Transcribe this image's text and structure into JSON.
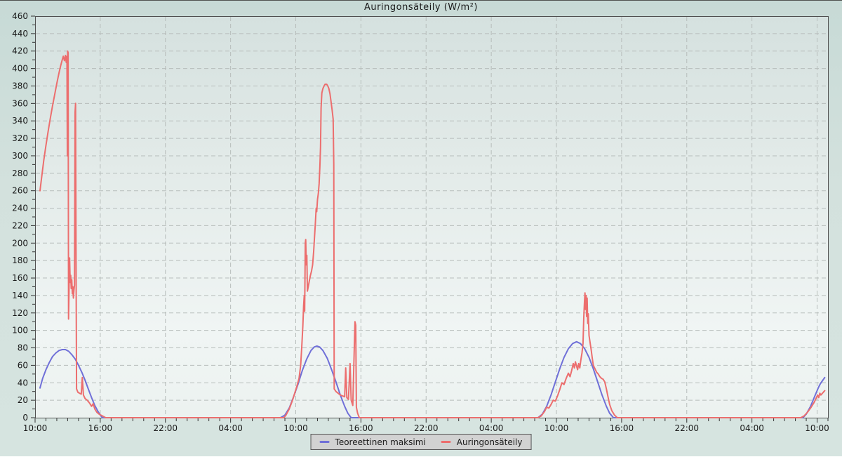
{
  "colors": {
    "background_top": "#c7dad6",
    "background_bottom": "#d6e4e0",
    "plot_top": "#d5e1df",
    "plot_bottom": "#ecf2f0",
    "grid": "#b7bdbb",
    "axis_border": "#4f4f4f",
    "tick": "#333333",
    "text": "#1a1a1a",
    "legend_bg": "#d2d2d2",
    "blue_series": "#7070d8",
    "red_series": "#ec6e6e"
  },
  "chart_data": {
    "type": "line",
    "title": "Auringonsäteily (W/m²)",
    "ylabel": "",
    "xlabel": "",
    "grid": {
      "horizontal": "dashed",
      "vertical": "dashed"
    },
    "x_axis": {
      "unit": "time-of-day over 3 days",
      "range_hours": [
        0,
        73
      ],
      "tick_hours": [
        0,
        6,
        12,
        18,
        24,
        30,
        36,
        42,
        48,
        54,
        60,
        66,
        72
      ],
      "tick_labels": [
        "10:00",
        "16:00",
        "22:00",
        "04:00",
        "10:00",
        "16:00",
        "22:00",
        "04:00",
        "10:00",
        "16:00",
        "22:00",
        "04:00",
        "10:00"
      ],
      "minor_tick_every_hours": 1
    },
    "y_axis": {
      "min": 0,
      "max": 460,
      "tick_step": 20,
      "minor_step": 10,
      "tick_labels": [
        "0",
        "20",
        "40",
        "60",
        "80",
        "100",
        "120",
        "140",
        "160",
        "180",
        "200",
        "220",
        "240",
        "260",
        "280",
        "300",
        "320",
        "340",
        "360",
        "380",
        "400",
        "420",
        "440",
        "460"
      ]
    },
    "legend": {
      "position": "bottom-center"
    },
    "series": [
      {
        "id": "teoreettinen-maksimi",
        "name": "Teoreettinen maksimi",
        "color": "#7070d8",
        "points": [
          [
            0.45,
            34
          ],
          [
            0.7,
            45
          ],
          [
            1.0,
            55
          ],
          [
            1.3,
            63
          ],
          [
            1.6,
            70
          ],
          [
            1.9,
            74
          ],
          [
            2.2,
            77
          ],
          [
            2.5,
            78
          ],
          [
            2.8,
            78
          ],
          [
            3.1,
            76
          ],
          [
            3.4,
            72
          ],
          [
            3.7,
            67
          ],
          [
            4.0,
            60
          ],
          [
            4.3,
            52
          ],
          [
            4.6,
            43
          ],
          [
            4.9,
            33
          ],
          [
            5.2,
            23
          ],
          [
            5.5,
            14
          ],
          [
            5.8,
            7
          ],
          [
            6.0,
            3
          ],
          [
            6.2,
            0
          ],
          [
            10,
            0
          ],
          [
            14,
            0
          ],
          [
            18,
            0
          ],
          [
            22.6,
            0
          ],
          [
            23.0,
            3
          ],
          [
            23.4,
            11
          ],
          [
            23.8,
            24
          ],
          [
            24.2,
            38
          ],
          [
            24.6,
            54
          ],
          [
            25.0,
            67
          ],
          [
            25.4,
            77
          ],
          [
            25.7,
            81
          ],
          [
            25.95,
            82
          ],
          [
            26.2,
            81
          ],
          [
            26.5,
            77
          ],
          [
            26.9,
            68
          ],
          [
            27.3,
            55
          ],
          [
            27.7,
            41
          ],
          [
            28.1,
            26
          ],
          [
            28.5,
            13
          ],
          [
            28.8,
            5
          ],
          [
            29.1,
            0
          ],
          [
            33,
            0
          ],
          [
            38,
            0
          ],
          [
            43,
            0
          ],
          [
            46.3,
            0
          ],
          [
            46.7,
            4
          ],
          [
            47.1,
            13
          ],
          [
            47.5,
            26
          ],
          [
            47.9,
            41
          ],
          [
            48.3,
            56
          ],
          [
            48.7,
            69
          ],
          [
            49.1,
            79
          ],
          [
            49.5,
            85
          ],
          [
            49.85,
            87
          ],
          [
            50.2,
            85
          ],
          [
            50.6,
            79
          ],
          [
            51.0,
            69
          ],
          [
            51.4,
            56
          ],
          [
            51.8,
            41
          ],
          [
            52.2,
            26
          ],
          [
            52.6,
            13
          ],
          [
            52.9,
            5
          ],
          [
            53.25,
            0
          ],
          [
            57,
            0
          ],
          [
            62,
            0
          ],
          [
            66,
            0
          ],
          [
            70.7,
            0
          ],
          [
            71.0,
            4
          ],
          [
            71.4,
            13
          ],
          [
            71.8,
            25
          ],
          [
            72.1,
            34
          ],
          [
            72.3,
            39
          ],
          [
            72.7,
            46
          ]
        ]
      },
      {
        "id": "auringonsateily",
        "name": "Auringonsäteily",
        "color": "#ec6e6e",
        "points": [
          [
            0.45,
            260
          ],
          [
            0.6,
            275
          ],
          [
            0.8,
            295
          ],
          [
            1.0,
            312
          ],
          [
            1.2,
            328
          ],
          [
            1.4,
            343
          ],
          [
            1.6,
            357
          ],
          [
            1.8,
            370
          ],
          [
            2.0,
            383
          ],
          [
            2.2,
            395
          ],
          [
            2.35,
            403
          ],
          [
            2.5,
            410
          ],
          [
            2.6,
            414
          ],
          [
            2.7,
            409
          ],
          [
            2.8,
            415
          ],
          [
            2.87,
            407
          ],
          [
            2.93,
            414
          ],
          [
            2.97,
            300
          ],
          [
            3.0,
            420
          ],
          [
            3.04,
            418
          ],
          [
            3.08,
            113
          ],
          [
            3.13,
            152
          ],
          [
            3.18,
            183
          ],
          [
            3.23,
            155
          ],
          [
            3.28,
            163
          ],
          [
            3.33,
            148
          ],
          [
            3.38,
            158
          ],
          [
            3.43,
            142
          ],
          [
            3.48,
            150
          ],
          [
            3.53,
            137
          ],
          [
            3.58,
            146
          ],
          [
            3.63,
            152
          ],
          [
            3.68,
            350
          ],
          [
            3.73,
            360
          ],
          [
            3.78,
            160
          ],
          [
            3.82,
            33
          ],
          [
            3.95,
            29
          ],
          [
            4.1,
            28
          ],
          [
            4.25,
            27
          ],
          [
            4.35,
            46
          ],
          [
            4.45,
            26
          ],
          [
            4.6,
            22
          ],
          [
            4.8,
            20
          ],
          [
            5.0,
            17
          ],
          [
            5.2,
            13
          ],
          [
            5.35,
            16
          ],
          [
            5.5,
            10
          ],
          [
            5.7,
            6
          ],
          [
            5.9,
            4
          ],
          [
            6.2,
            2
          ],
          [
            6.5,
            0
          ],
          [
            10,
            0
          ],
          [
            14,
            0
          ],
          [
            18,
            0
          ],
          [
            22.9,
            0
          ],
          [
            23.1,
            3
          ],
          [
            23.4,
            10
          ],
          [
            23.7,
            20
          ],
          [
            23.9,
            28
          ],
          [
            24.1,
            36
          ],
          [
            24.3,
            45
          ],
          [
            24.45,
            60
          ],
          [
            24.55,
            80
          ],
          [
            24.65,
            105
          ],
          [
            24.72,
            128
          ],
          [
            24.78,
            140
          ],
          [
            24.82,
            122
          ],
          [
            24.88,
            200
          ],
          [
            24.92,
            204
          ],
          [
            24.97,
            175
          ],
          [
            25.02,
            186
          ],
          [
            25.07,
            145
          ],
          [
            25.15,
            150
          ],
          [
            25.25,
            157
          ],
          [
            25.35,
            163
          ],
          [
            25.45,
            168
          ],
          [
            25.55,
            175
          ],
          [
            25.65,
            190
          ],
          [
            25.72,
            205
          ],
          [
            25.8,
            222
          ],
          [
            25.88,
            240
          ],
          [
            25.93,
            236
          ],
          [
            26.0,
            250
          ],
          [
            26.08,
            257
          ],
          [
            26.15,
            268
          ],
          [
            26.22,
            288
          ],
          [
            26.28,
            310
          ],
          [
            26.33,
            355
          ],
          [
            26.4,
            372
          ],
          [
            26.5,
            377
          ],
          [
            26.6,
            380
          ],
          [
            26.7,
            382
          ],
          [
            26.85,
            382
          ],
          [
            26.95,
            380
          ],
          [
            27.05,
            377
          ],
          [
            27.15,
            371
          ],
          [
            27.25,
            362
          ],
          [
            27.35,
            352
          ],
          [
            27.44,
            342
          ],
          [
            27.5,
            290
          ],
          [
            27.54,
            33
          ],
          [
            27.7,
            30
          ],
          [
            27.9,
            28
          ],
          [
            28.1,
            26
          ],
          [
            28.3,
            25
          ],
          [
            28.5,
            24
          ],
          [
            28.6,
            57
          ],
          [
            28.7,
            23
          ],
          [
            28.85,
            21
          ],
          [
            29.0,
            62
          ],
          [
            29.1,
            20
          ],
          [
            29.25,
            14
          ],
          [
            29.45,
            110
          ],
          [
            29.52,
            106
          ],
          [
            29.58,
            12
          ],
          [
            29.7,
            5
          ],
          [
            29.85,
            0
          ],
          [
            33,
            0
          ],
          [
            38,
            0
          ],
          [
            43,
            0
          ],
          [
            46.3,
            0
          ],
          [
            46.6,
            2
          ],
          [
            46.9,
            7
          ],
          [
            47.1,
            12
          ],
          [
            47.3,
            11
          ],
          [
            47.5,
            15
          ],
          [
            47.7,
            20
          ],
          [
            47.9,
            19
          ],
          [
            48.1,
            25
          ],
          [
            48.3,
            32
          ],
          [
            48.5,
            40
          ],
          [
            48.7,
            38
          ],
          [
            48.9,
            45
          ],
          [
            49.1,
            51
          ],
          [
            49.25,
            47
          ],
          [
            49.4,
            54
          ],
          [
            49.55,
            62
          ],
          [
            49.65,
            57
          ],
          [
            49.75,
            64
          ],
          [
            49.85,
            59
          ],
          [
            49.95,
            55
          ],
          [
            50.05,
            62
          ],
          [
            50.15,
            57
          ],
          [
            50.25,
            66
          ],
          [
            50.35,
            74
          ],
          [
            50.45,
            85
          ],
          [
            50.52,
            115
          ],
          [
            50.58,
            133
          ],
          [
            50.63,
            143
          ],
          [
            50.68,
            124
          ],
          [
            50.73,
            140
          ],
          [
            50.78,
            116
          ],
          [
            50.83,
            137
          ],
          [
            50.88,
            108
          ],
          [
            50.93,
            119
          ],
          [
            51.0,
            94
          ],
          [
            51.1,
            86
          ],
          [
            51.2,
            78
          ],
          [
            51.3,
            68
          ],
          [
            51.4,
            60
          ],
          [
            51.55,
            56
          ],
          [
            51.7,
            52
          ],
          [
            51.85,
            50
          ],
          [
            52.0,
            47
          ],
          [
            52.15,
            45
          ],
          [
            52.3,
            44
          ],
          [
            52.45,
            41
          ],
          [
            52.6,
            33
          ],
          [
            52.75,
            24
          ],
          [
            52.9,
            15
          ],
          [
            53.1,
            8
          ],
          [
            53.35,
            3
          ],
          [
            53.6,
            0
          ],
          [
            57,
            0
          ],
          [
            62,
            0
          ],
          [
            66,
            0
          ],
          [
            70.5,
            0
          ],
          [
            70.8,
            2
          ],
          [
            71.1,
            6
          ],
          [
            71.4,
            11
          ],
          [
            71.7,
            17
          ],
          [
            71.9,
            22
          ],
          [
            72.05,
            26
          ],
          [
            72.15,
            23
          ],
          [
            72.25,
            28
          ],
          [
            72.35,
            26
          ],
          [
            72.7,
            31
          ]
        ]
      }
    ]
  }
}
